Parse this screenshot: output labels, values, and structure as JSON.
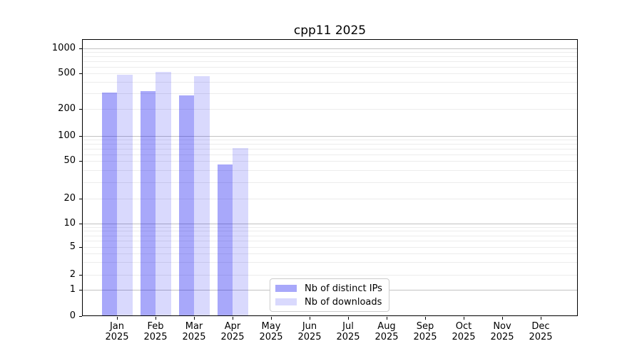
{
  "chart_data": {
    "type": "bar",
    "title": "cpp11 2025",
    "categories": [
      "Jan 2025",
      "Feb 2025",
      "Mar 2025",
      "Apr 2025",
      "May 2025",
      "Jun 2025",
      "Jul 2025",
      "Aug 2025",
      "Sep 2025",
      "Oct 2025",
      "Nov 2025",
      "Dec 2025"
    ],
    "x_tick_labels": [
      [
        "Jan",
        "2025"
      ],
      [
        "Feb",
        "2025"
      ],
      [
        "Mar",
        "2025"
      ],
      [
        "Apr",
        "2025"
      ],
      [
        "May",
        "2025"
      ],
      [
        "Jun",
        "2025"
      ],
      [
        "Jul",
        "2025"
      ],
      [
        "Aug",
        "2025"
      ],
      [
        "Sep",
        "2025"
      ],
      [
        "Oct",
        "2025"
      ],
      [
        "Nov",
        "2025"
      ],
      [
        "Dec",
        "2025"
      ]
    ],
    "series": [
      {
        "name": "Nb of distinct IPs",
        "color": "rgba(0,0,240,0.34)",
        "color_hex": "#a8a8fa",
        "values": [
          307,
          318,
          282,
          46,
          null,
          null,
          null,
          null,
          null,
          null,
          null,
          null
        ]
      },
      {
        "name": "Nb of downloads",
        "color": "rgba(0,0,240,0.15)",
        "color_hex": "#d9d9fd",
        "values": [
          483,
          520,
          465,
          71,
          null,
          null,
          null,
          null,
          null,
          null,
          null,
          null
        ]
      }
    ],
    "y_axis": {
      "scale": "symlog",
      "tick_values": [
        0,
        1,
        2,
        5,
        10,
        20,
        50,
        100,
        200,
        500,
        1000
      ],
      "tick_labels": [
        "0",
        "1",
        "2",
        "5",
        "10",
        "20",
        "50",
        "100",
        "200",
        "500",
        "1000"
      ],
      "major_gridline_values": [
        1,
        10,
        100,
        1000
      ],
      "minor_gridline_values": [
        3,
        4,
        6,
        7,
        8,
        9,
        30,
        40,
        60,
        70,
        80,
        90,
        300,
        400,
        600,
        700,
        800,
        900
      ],
      "ylim": [
        0,
        1150
      ]
    },
    "grid": true,
    "legend": {
      "position": "lower center",
      "entries": [
        "Nb of distinct IPs",
        "Nb of downloads"
      ]
    }
  },
  "colors": {
    "background": "#ffffff",
    "axis": "#000000",
    "major_grid": "#c2c2c2",
    "minor_grid": "#ececec",
    "legend_border": "#cccccc"
  }
}
